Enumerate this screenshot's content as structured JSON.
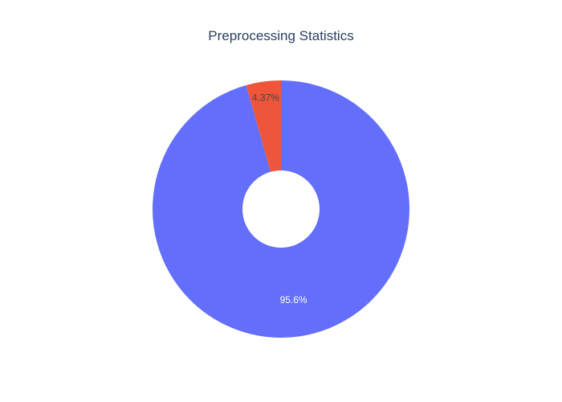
{
  "chart_data": {
    "type": "pie",
    "title": "Preprocessing Statistics",
    "hole": true,
    "direction": "clockwise",
    "start": "top",
    "slices": [
      {
        "value": 95.63,
        "label": "95.6%",
        "color": "#636efa",
        "text_color": "#ffffff"
      },
      {
        "value": 4.37,
        "label": "4.37%",
        "color": "#ef553b",
        "text_color": "#444444"
      }
    ]
  }
}
